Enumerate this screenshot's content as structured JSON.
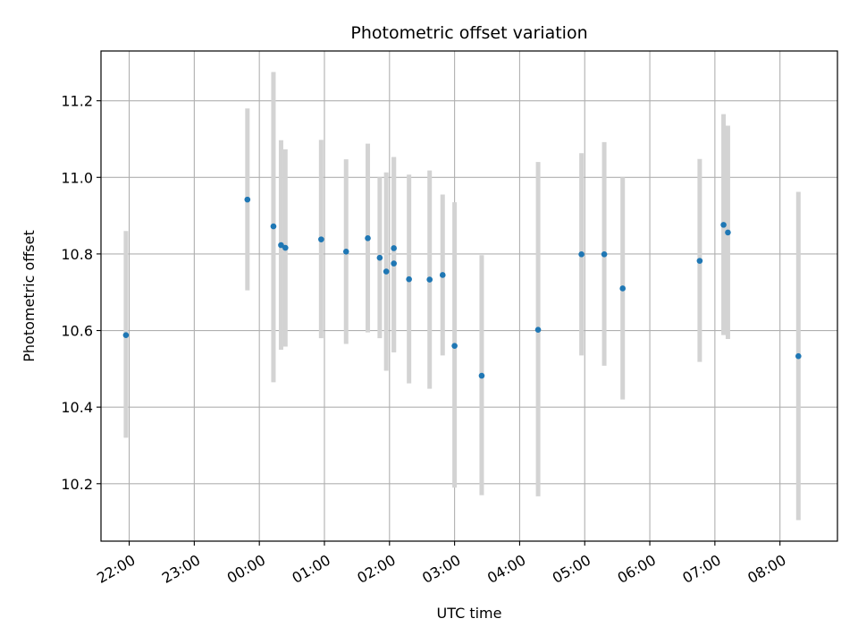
{
  "chart_data": {
    "type": "scatter",
    "title": "Photometric offset variation",
    "xlabel": "UTC time",
    "ylabel": "Photometric offset",
    "x_axis_type": "time",
    "xlim": [
      "21:34",
      "08:53"
    ],
    "ylim": [
      10.05,
      11.33
    ],
    "grid": true,
    "legend": "none",
    "x_ticks": [
      "22:00",
      "23:00",
      "00:00",
      "01:00",
      "02:00",
      "03:00",
      "04:00",
      "05:00",
      "06:00",
      "07:00",
      "08:00"
    ],
    "y_ticks": [
      "10.2",
      "10.4",
      "10.6",
      "10.8",
      "11.0",
      "11.2"
    ],
    "series": [
      {
        "marker_color": "#1f77b4",
        "errorbar_color": "#d3d3d3",
        "points": [
          {
            "x": "21:57",
            "y": 10.588,
            "ylow": 10.32,
            "yhigh": 10.86
          },
          {
            "x": "23:49",
            "y": 10.942,
            "ylow": 10.705,
            "yhigh": 11.18
          },
          {
            "x": "00:13",
            "y": 10.872,
            "ylow": 10.465,
            "yhigh": 11.275
          },
          {
            "x": "00:20",
            "y": 10.823,
            "ylow": 10.55,
            "yhigh": 11.097
          },
          {
            "x": "00:24",
            "y": 10.816,
            "ylow": 10.558,
            "yhigh": 11.073
          },
          {
            "x": "00:57",
            "y": 10.838,
            "ylow": 10.58,
            "yhigh": 11.098
          },
          {
            "x": "01:20",
            "y": 10.806,
            "ylow": 10.565,
            "yhigh": 11.047
          },
          {
            "x": "01:40",
            "y": 10.841,
            "ylow": 10.595,
            "yhigh": 11.088
          },
          {
            "x": "01:51",
            "y": 10.79,
            "ylow": 10.58,
            "yhigh": 11.0
          },
          {
            "x": "01:57",
            "y": 10.754,
            "ylow": 10.495,
            "yhigh": 11.013
          },
          {
            "x": "02:04",
            "y": 10.815,
            "ylow": 10.543,
            "yhigh": 11.053
          },
          {
            "x": "02:04",
            "y": 10.775,
            "ylow": 10.543,
            "yhigh": 11.053
          },
          {
            "x": "02:18",
            "y": 10.734,
            "ylow": 10.462,
            "yhigh": 11.007
          },
          {
            "x": "02:37",
            "y": 10.733,
            "ylow": 10.448,
            "yhigh": 11.018
          },
          {
            "x": "02:49",
            "y": 10.745,
            "ylow": 10.535,
            "yhigh": 10.955
          },
          {
            "x": "03:00",
            "y": 10.56,
            "ylow": 10.19,
            "yhigh": 10.935
          },
          {
            "x": "03:25",
            "y": 10.482,
            "ylow": 10.17,
            "yhigh": 10.797
          },
          {
            "x": "04:17",
            "y": 10.602,
            "ylow": 10.167,
            "yhigh": 11.04
          },
          {
            "x": "04:57",
            "y": 10.799,
            "ylow": 10.535,
            "yhigh": 11.063
          },
          {
            "x": "05:18",
            "y": 10.799,
            "ylow": 10.508,
            "yhigh": 11.092
          },
          {
            "x": "05:35",
            "y": 10.71,
            "ylow": 10.42,
            "yhigh": 11.0
          },
          {
            "x": "06:46",
            "y": 10.782,
            "ylow": 10.518,
            "yhigh": 11.048
          },
          {
            "x": "07:08",
            "y": 10.876,
            "ylow": 10.588,
            "yhigh": 11.165
          },
          {
            "x": "07:12",
            "y": 10.856,
            "ylow": 10.578,
            "yhigh": 11.135
          },
          {
            "x": "08:17",
            "y": 10.533,
            "ylow": 10.105,
            "yhigh": 10.962
          }
        ]
      }
    ]
  }
}
